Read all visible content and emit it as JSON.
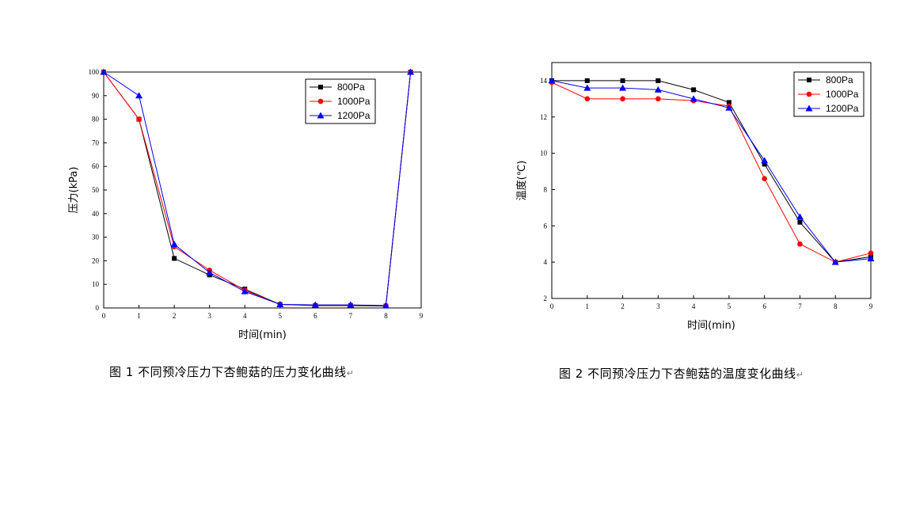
{
  "chart_data": [
    {
      "type": "line",
      "title": "",
      "xlabel": "时间(min)",
      "ylabel": "压力(kPa)",
      "xlim": [
        0,
        9
      ],
      "ylim": [
        0,
        100
      ],
      "xticks": [
        0,
        1,
        2,
        3,
        4,
        5,
        6,
        7,
        8,
        9
      ],
      "yticks": [
        0,
        10,
        20,
        30,
        40,
        50,
        60,
        70,
        80,
        90,
        100
      ],
      "grid": false,
      "legend": "top-right",
      "series": [
        {
          "name": "800Pa",
          "color": "#000000",
          "marker": "square",
          "x": [
            0,
            1,
            2,
            3,
            4,
            5,
            6,
            7,
            8,
            8.7
          ],
          "y": [
            100,
            80,
            21,
            14,
            8,
            1.5,
            1,
            1,
            0.8,
            100
          ]
        },
        {
          "name": "1000Pa",
          "color": "#ff0000",
          "marker": "circle",
          "x": [
            0,
            1,
            2,
            3,
            4,
            5,
            6,
            7,
            8,
            8.7
          ],
          "y": [
            100,
            80,
            26,
            16,
            7.5,
            1.5,
            1.2,
            1.2,
            1,
            100
          ]
        },
        {
          "name": "1200Pa",
          "color": "#0000ff",
          "marker": "triangle",
          "x": [
            0,
            1,
            2,
            3,
            4,
            5,
            6,
            7,
            8,
            8.7
          ],
          "y": [
            100,
            90,
            27,
            15,
            7,
            1.5,
            1.3,
            1.3,
            1,
            100
          ]
        }
      ]
    },
    {
      "type": "line",
      "title": "",
      "xlabel": "时间(min)",
      "ylabel": "温度(℃)",
      "xlim": [
        0,
        9
      ],
      "ylim": [
        2,
        15
      ],
      "xticks": [
        0,
        1,
        2,
        3,
        4,
        5,
        6,
        7,
        8,
        9
      ],
      "yticks": [
        2,
        4,
        6,
        8,
        10,
        12,
        14
      ],
      "grid": false,
      "legend": "top-right",
      "series": [
        {
          "name": "800Pa",
          "color": "#000000",
          "marker": "square",
          "x": [
            0,
            1,
            2,
            3,
            4,
            5,
            6,
            7,
            8,
            9
          ],
          "y": [
            14,
            14,
            14,
            14,
            13.5,
            12.8,
            9.4,
            6.2,
            4,
            4.3
          ]
        },
        {
          "name": "1000Pa",
          "color": "#ff0000",
          "marker": "circle",
          "x": [
            0,
            1,
            2,
            3,
            4,
            5,
            6,
            7,
            8,
            9
          ],
          "y": [
            13.9,
            13,
            13,
            13,
            12.9,
            12.6,
            8.6,
            5,
            4,
            4.5
          ]
        },
        {
          "name": "1200Pa",
          "color": "#0000ff",
          "marker": "triangle",
          "x": [
            0,
            1,
            2,
            3,
            4,
            5,
            6,
            7,
            8,
            9
          ],
          "y": [
            14,
            13.6,
            13.6,
            13.5,
            13,
            12.5,
            9.6,
            6.5,
            4,
            4.2
          ]
        }
      ]
    }
  ],
  "captions": {
    "fig1": "图  1    不同预冷压力下杏鲍菇的压力变化曲线",
    "fig2": "图  2    不同预冷压力下杏鲍菇的温度变化曲线",
    "mark": "↵"
  }
}
